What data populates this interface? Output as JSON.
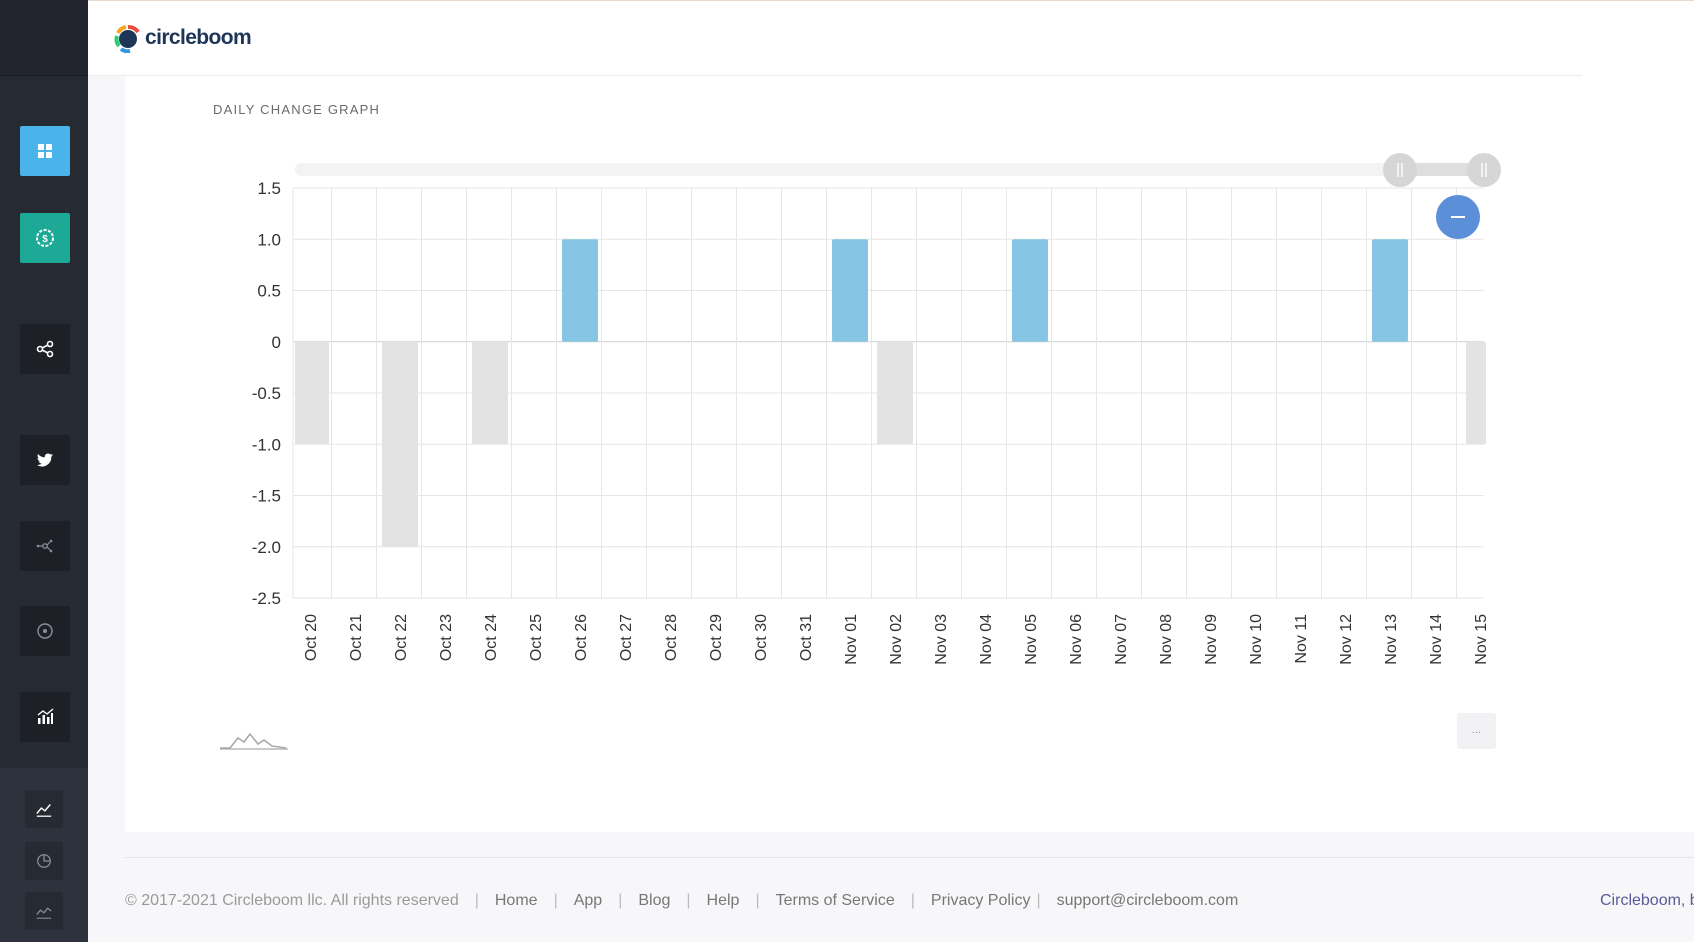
{
  "brand": {
    "name": "circleboom"
  },
  "card": {
    "title": "DAILY CHANGE GRAPH",
    "more_label": "..."
  },
  "colors": {
    "positive": "#86c5e3",
    "negative": "#e3e3e3",
    "accent": "#5b8fd8",
    "sidebar": "#262a33"
  },
  "sidebar": {
    "items": [
      {
        "icon": "dashboard-grid-icon",
        "style": "blue"
      },
      {
        "icon": "dollar-badge-icon",
        "style": "teal"
      },
      {
        "icon": "share-icon",
        "style": "dark"
      },
      {
        "icon": "twitter-bird-icon",
        "style": "dark"
      },
      {
        "icon": "network-nodes-icon",
        "style": "dark"
      },
      {
        "icon": "target-circle-icon",
        "style": "dark"
      },
      {
        "icon": "analytics-chart-icon",
        "style": "dark"
      },
      {
        "icon": "trend-up-icon",
        "style": "small"
      },
      {
        "icon": "pie-chart-icon",
        "style": "small"
      },
      {
        "icon": "line-chart-icon",
        "style": "small"
      }
    ]
  },
  "chart_data": {
    "type": "bar",
    "categories": [
      "Oct 20",
      "Oct 21",
      "Oct 22",
      "Oct 23",
      "Oct 24",
      "Oct 25",
      "Oct 26",
      "Oct 27",
      "Oct 28",
      "Oct 29",
      "Oct 30",
      "Oct 31",
      "Nov 01",
      "Nov 02",
      "Nov 03",
      "Nov 04",
      "Nov 05",
      "Nov 06",
      "Nov 07",
      "Nov 08",
      "Nov 09",
      "Nov 10",
      "Nov 11",
      "Nov 12",
      "Nov 13",
      "Nov 14",
      "Nov 15"
    ],
    "values": [
      -1,
      0,
      -2,
      0,
      -1,
      0,
      1,
      0,
      0,
      0,
      0,
      0,
      1,
      -1,
      0,
      0,
      1,
      0,
      0,
      0,
      0,
      0,
      0,
      0,
      1,
      0,
      -1
    ],
    "ylim": [
      -2.5,
      1.5
    ],
    "yticks": [
      "1.5",
      "1.0",
      "0.5",
      "0",
      "-0.5",
      "-1.0",
      "-1.5",
      "-2.0",
      "-2.5"
    ],
    "grid": true,
    "zoom_control": "range slider with collapse button"
  },
  "footer": {
    "copyright": "© 2017-2021 Circleboom llc. All rights reserved",
    "links": [
      "Home",
      "App",
      "Blog",
      "Help",
      "Terms of Service",
      "Privacy Policy"
    ],
    "email": "support@circleboom.com",
    "right_text": "Circleboom, b"
  }
}
